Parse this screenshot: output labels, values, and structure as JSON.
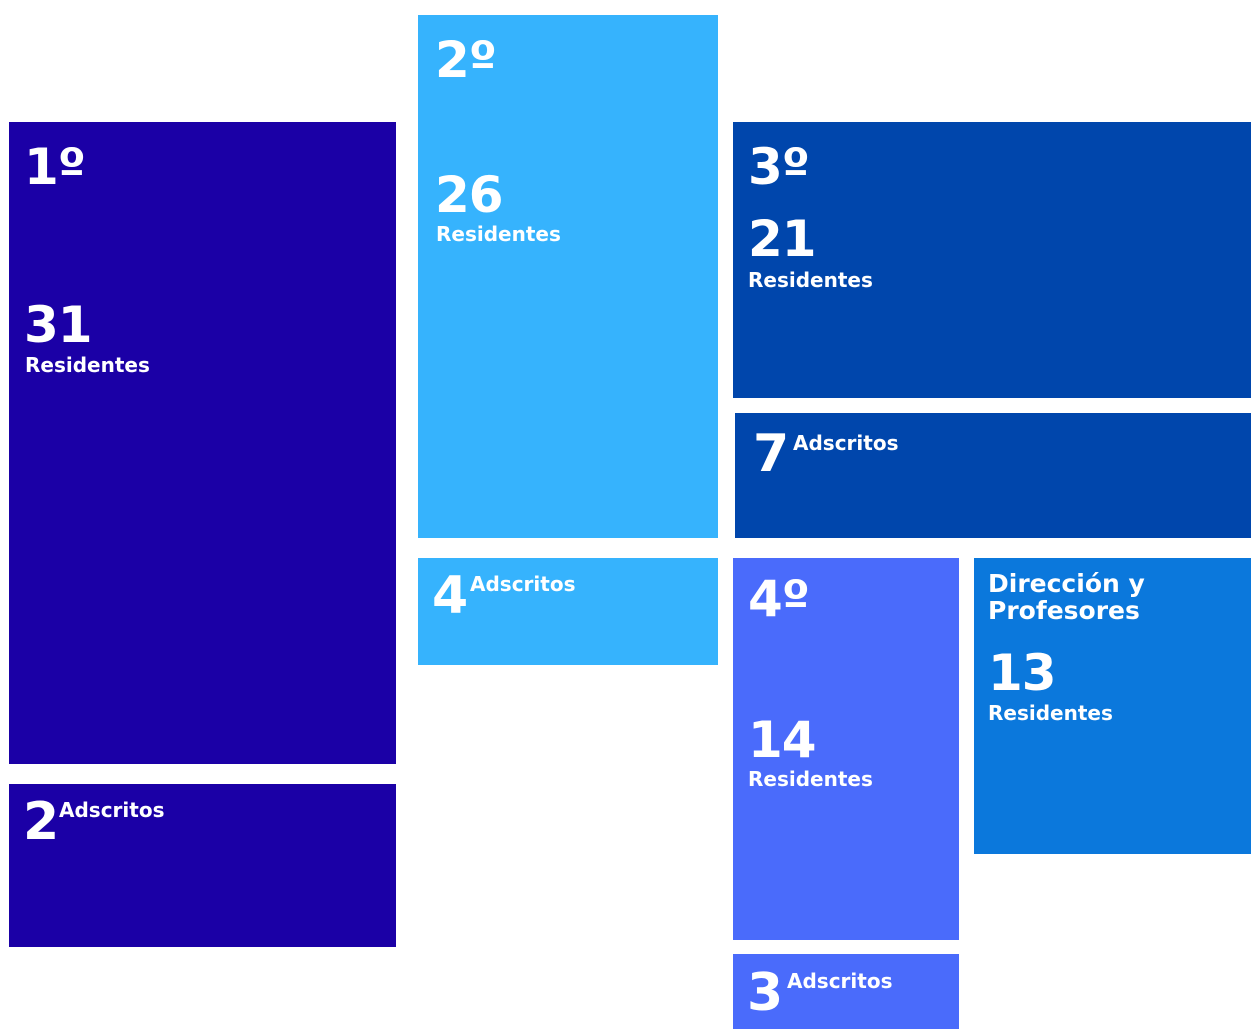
{
  "colors": {
    "first": "#1b00a6",
    "second": "#36b3fd",
    "third": "#0046ac",
    "fourth": "#4a6bfb",
    "staff": "#0b78dc"
  },
  "groups": {
    "first": {
      "grade": "1º",
      "residents": "31",
      "residents_label": "Residentes",
      "adscribed": "2",
      "adscribed_label": "Adscritos"
    },
    "second": {
      "grade": "2º",
      "residents": "26",
      "residents_label": "Residentes",
      "adscribed": "4",
      "adscribed_label": "Adscritos"
    },
    "third": {
      "grade": "3º",
      "residents": "21",
      "residents_label": "Residentes",
      "adscribed": "7",
      "adscribed_label": "Adscritos"
    },
    "fourth": {
      "grade": "4º",
      "residents": "14",
      "residents_label": "Residentes",
      "adscribed": "3",
      "adscribed_label": "Adscritos"
    },
    "staff": {
      "title_line1": "Dirección y",
      "title_line2": "Profesores",
      "residents": "13",
      "residents_label": "Residentes"
    }
  }
}
